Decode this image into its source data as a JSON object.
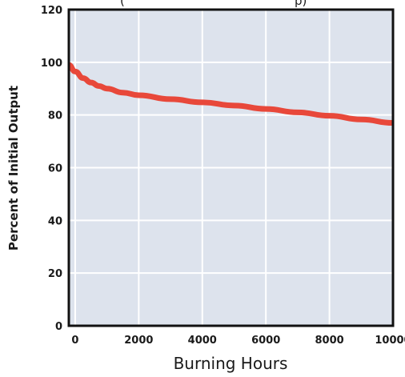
{
  "chart_data": {
    "type": "line",
    "title": "(",
    "title_suffix": "p)",
    "xlabel": "Burning Hours",
    "ylabel": "Percent of Initial Output",
    "xlim": [
      -200,
      10000
    ],
    "ylim": [
      0,
      120
    ],
    "x_ticks": [
      0,
      2000,
      4000,
      6000,
      8000,
      10000
    ],
    "y_ticks": [
      0,
      20,
      40,
      60,
      80,
      100,
      120
    ],
    "grid": true,
    "legend": "none",
    "series": [
      {
        "x": [
          -200,
          0,
          250,
          500,
          750,
          1000,
          1500,
          2000,
          3000,
          4000,
          5000,
          6000,
          7000,
          8000,
          9000,
          10000
        ],
        "y": [
          99,
          96.5,
          94,
          92.3,
          91,
          90,
          88.5,
          87.5,
          86,
          84.8,
          83.6,
          82.3,
          81,
          79.7,
          78.3,
          77
        ]
      }
    ]
  },
  "colors": {
    "plot_background": "#dde3ed",
    "gridline": "#ffffff",
    "axis_frame": "#111111",
    "series_line": "#e8483a"
  }
}
